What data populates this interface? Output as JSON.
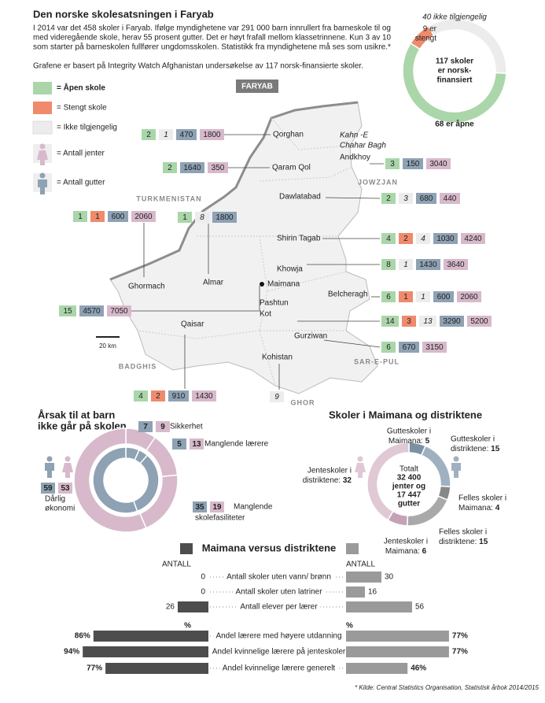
{
  "header": {
    "title": "Den norske skolesatsningen i Faryab",
    "intro": [
      "I 2014 var det 458 skoler i Faryab. Ifølge myndighetene var 291 000 barn innrullert fra barneskole til og",
      "med videregående skole, herav 55 prosent gutter. Det er høyt frafall mellom klassetrinnene. Kun 3 av 10",
      "som starter på barneskolen fullfører ungdomsskolen. Statistikk fra myndighetene må ses som usikre.*"
    ],
    "note": "Grafene er basert på Integrity Watch Afghanistan undersøkelse av 117 norsk-finansierte skoler."
  },
  "status_chart": {
    "type": "pie",
    "center": [
      "117 skoler",
      "er norsk-",
      "finansiert"
    ],
    "segments": [
      {
        "label": [
          "9 er",
          "stengt"
        ],
        "value": 9,
        "color": "#ef8a6c"
      },
      {
        "label": [
          "40 ikke tilgjengelig"
        ],
        "value": 40,
        "color": "#ececec"
      },
      {
        "label": [
          "68 er åpne"
        ],
        "value": 68,
        "color": "#aad6a9"
      }
    ]
  },
  "legend": [
    {
      "label": "= Åpen skole",
      "color": "#aad6a9"
    },
    {
      "label": "= Stengt skole",
      "color": "#ef8a6c"
    },
    {
      "label": "= Ikke tilgjengelig",
      "color": "#ececec"
    },
    {
      "label": "= Antall jenter",
      "color": "#d8b9cb"
    },
    {
      "label": "= Antall gutter",
      "color": "#8ea2b4"
    }
  ],
  "map": {
    "title": "FARYAB",
    "scale": "20 km",
    "regions": [
      "TURKMENISTAN",
      "JOWZJAN",
      "BADGHIS",
      "SAR-E-PUL",
      "GHOR"
    ],
    "places": [
      [
        "Kahn -E",
        "Chahar Bagh"
      ]
    ],
    "districts": [
      {
        "name": [
          "Qorghan"
        ],
        "cells": [
          {
            "value": 2,
            "color": "#aad6a9"
          },
          {
            "value": 1,
            "color": "#ececec"
          },
          {
            "value": 470,
            "color": "#8ea2b4"
          },
          {
            "value": 1800,
            "color": "#d8b9cb"
          }
        ]
      },
      {
        "name": [
          "Qaram Qol"
        ],
        "cells": [
          {
            "value": 2,
            "color": "#aad6a9"
          },
          {
            "value": 1640,
            "color": "#8ea2b4"
          },
          {
            "value": 350,
            "color": "#d8b9cb"
          }
        ]
      },
      {
        "name": [
          "Andkhoy"
        ],
        "cells": [
          {
            "value": 3,
            "color": "#aad6a9"
          },
          {
            "value": 150,
            "color": "#8ea2b4"
          },
          {
            "value": 3040,
            "color": "#d8b9cb"
          }
        ]
      },
      {
        "name": [
          "Dawlatabad"
        ],
        "cells": [
          {
            "value": 2,
            "color": "#aad6a9"
          },
          {
            "value": 3,
            "color": "#ececec"
          },
          {
            "value": 680,
            "color": "#8ea2b4"
          },
          {
            "value": 440,
            "color": "#d8b9cb"
          }
        ]
      },
      {
        "name": [
          "Ghormach"
        ],
        "cells": [
          {
            "value": 1,
            "color": "#aad6a9"
          },
          {
            "value": 1,
            "color": "#ef8a6c"
          },
          {
            "value": 600,
            "color": "#8ea2b4"
          },
          {
            "value": 2060,
            "color": "#d8b9cb"
          }
        ]
      },
      {
        "name": [
          "Almar"
        ],
        "cells": [
          {
            "value": 1,
            "color": "#aad6a9"
          },
          {
            "value": 8,
            "color": "#ececec"
          },
          {
            "value": 1800,
            "color": "#8ea2b4"
          }
        ]
      },
      {
        "name": [
          "Shirin Tagab"
        ],
        "cells": [
          {
            "value": 4,
            "color": "#aad6a9"
          },
          {
            "value": 2,
            "color": "#ef8a6c"
          },
          {
            "value": 4,
            "color": "#ececec"
          },
          {
            "value": 1030,
            "color": "#8ea2b4"
          },
          {
            "value": 4240,
            "color": "#d8b9cb"
          }
        ]
      },
      {
        "name": [
          "Khowja"
        ],
        "cells": [
          {
            "value": 8,
            "color": "#aad6a9"
          },
          {
            "value": 1,
            "color": "#ececec"
          },
          {
            "value": 1430,
            "color": "#8ea2b4"
          },
          {
            "value": 3640,
            "color": "#d8b9cb"
          }
        ]
      },
      {
        "name": [
          "Maimana"
        ],
        "cells": [
          {
            "value": 15,
            "color": "#aad6a9"
          },
          {
            "value": 4570,
            "color": "#8ea2b4"
          },
          {
            "value": 7050,
            "color": "#d8b9cb"
          }
        ]
      },
      {
        "name": [
          "Belcheragh"
        ],
        "cells": [
          {
            "value": 6,
            "color": "#aad6a9"
          },
          {
            "value": 1,
            "color": "#ef8a6c"
          },
          {
            "value": 1,
            "color": "#ececec"
          },
          {
            "value": 600,
            "color": "#8ea2b4"
          },
          {
            "value": 2060,
            "color": "#d8b9cb"
          }
        ]
      },
      {
        "name": [
          "Pashtun",
          "Kot"
        ],
        "cells": [
          {
            "value": 14,
            "color": "#aad6a9"
          },
          {
            "value": 3,
            "color": "#ef8a6c"
          },
          {
            "value": 13,
            "color": "#ececec"
          },
          {
            "value": 3290,
            "color": "#8ea2b4"
          },
          {
            "value": 5200,
            "color": "#d8b9cb"
          }
        ]
      },
      {
        "name": [
          "Gurziwan"
        ],
        "cells": [
          {
            "value": 6,
            "color": "#aad6a9"
          },
          {
            "value": 670,
            "color": "#8ea2b4"
          },
          {
            "value": 3150,
            "color": "#d8b9cb"
          }
        ]
      },
      {
        "name": [
          "Qaisar"
        ],
        "cells": [
          {
            "value": 4,
            "color": "#aad6a9"
          },
          {
            "value": 2,
            "color": "#ef8a6c"
          },
          {
            "value": 910,
            "color": "#8ea2b4"
          },
          {
            "value": 1430,
            "color": "#d8b9cb"
          }
        ]
      },
      {
        "name": [
          "Kohistan"
        ],
        "cells": [
          {
            "value": 9,
            "color": "#ececec"
          }
        ]
      }
    ]
  },
  "reasons_chart": {
    "type": "pie",
    "title": [
      "Årsak til at barn",
      "ikke går på skolen"
    ],
    "categories": [
      [
        "Sikkerhet"
      ],
      [
        "Manglende lærere"
      ],
      [
        "Manglende",
        "skolefasiliteter"
      ],
      [
        "Dårlig",
        "økonomi"
      ]
    ],
    "series": [
      {
        "color": "#8ea2b4",
        "values": [
          7,
          5,
          35,
          59
        ]
      },
      {
        "color": "#d8b9cb",
        "values": [
          9,
          13,
          19,
          53
        ]
      }
    ]
  },
  "schools_chart": {
    "type": "pie",
    "title": "Skoler i Maimana og distriktene",
    "center": [
      "Totalt",
      "32 400",
      "jenter og",
      "17 447",
      "gutter"
    ],
    "segments": [
      {
        "label": [
          "Gutteskoler i",
          "Maimana:"
        ],
        "value": 5,
        "color": "#7b91a4"
      },
      {
        "label": [
          "Gutteskoler i",
          "distriktene:"
        ],
        "value": 15,
        "color": "#9fb1c1"
      },
      {
        "label": [
          "Felles skoler i",
          "Maimana:"
        ],
        "value": 4,
        "color": "#878787"
      },
      {
        "label": [
          "Felles skoler i",
          "distriktene:"
        ],
        "value": 15,
        "color": "#a9a9a9"
      },
      {
        "label": [
          "Jenteskoler i",
          "Maimana:"
        ],
        "value": 6,
        "color": "#c6a2b6"
      },
      {
        "label": [
          "Jenteskoler i",
          "distriktene:"
        ],
        "value": 32,
        "color": "#e0c8d5"
      }
    ]
  },
  "comparison": {
    "type": "bar",
    "title": "Maimana versus distriktene",
    "colors": [
      "#4d4d4d",
      "#9a9a9a"
    ],
    "panels": [
      {
        "unit": "ANTALL",
        "xlim": [
          0,
          60
        ],
        "categories": [
          "Antall skoler uten vann/ brønn",
          "Antall skoler uten latriner",
          "Antall elever per lærer"
        ],
        "series": [
          {
            "values": [
              0,
              0,
              26
            ]
          },
          {
            "values": [
              30,
              16,
              56
            ]
          }
        ]
      },
      {
        "unit": "%",
        "xlim": [
          0,
          100
        ],
        "categories": [
          "Andel lærere med høyere utdanning",
          "Andel kvinnelige lærere på jenteskoler",
          "Andel kvinnelige lærere generelt"
        ],
        "series": [
          {
            "values": [
              86,
              94,
              77
            ],
            "value_labels": [
              "86%",
              "94%",
              "77%"
            ]
          },
          {
            "values": [
              77,
              77,
              46
            ],
            "value_labels": [
              "77%",
              "77%",
              "46%"
            ]
          }
        ]
      }
    ]
  },
  "footnote": "* Kilde: Central Statistics Organisation, Statistisk årbok 2014/2015"
}
